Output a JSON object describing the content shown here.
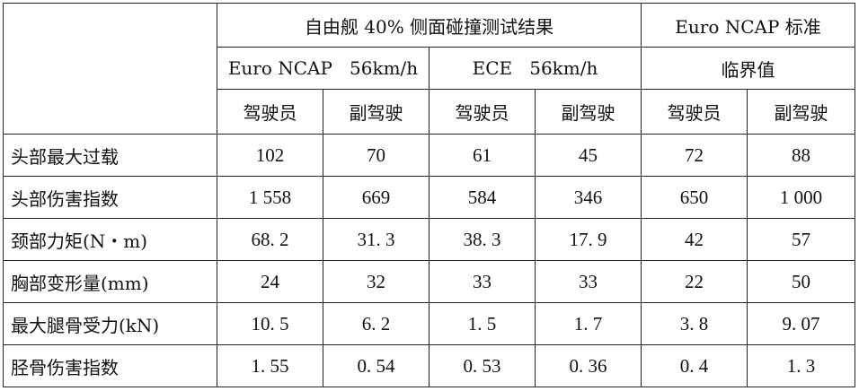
{
  "header": {
    "group_test": "自由舰 40% 侧面碰撞测试结果",
    "group_standard": "Euro NCAP 标准",
    "sub_euro": "Euro NCAP   56km/h",
    "sub_ece": "ECE   56km/h",
    "sub_limit": "临界值",
    "driver": "驾驶员",
    "passenger": "副驾驶"
  },
  "rows": [
    {
      "label": "头部最大过载",
      "values": [
        "102",
        "70",
        "61",
        "45",
        "72",
        "88"
      ]
    },
    {
      "label": "头部伤害指数",
      "values": [
        "1 558",
        "669",
        "584",
        "346",
        "650",
        "1 000"
      ]
    },
    {
      "label": "颈部力矩(N・m)",
      "values": [
        "68. 2",
        "31. 3",
        "38. 3",
        "17. 9",
        "42",
        "57"
      ]
    },
    {
      "label": "胸部变形量(mm)",
      "values": [
        "24",
        "32",
        "33",
        "33",
        "22",
        "50"
      ]
    },
    {
      "label": "最大腿骨受力(kN)",
      "values": [
        "10. 5",
        "6. 2",
        "1. 5",
        "1. 7",
        "3. 8",
        "9. 07"
      ]
    },
    {
      "label": "胫骨伤害指数",
      "values": [
        "1. 55",
        "0. 54",
        "0. 53",
        "0. 36",
        "0. 4",
        "1. 3"
      ]
    }
  ]
}
